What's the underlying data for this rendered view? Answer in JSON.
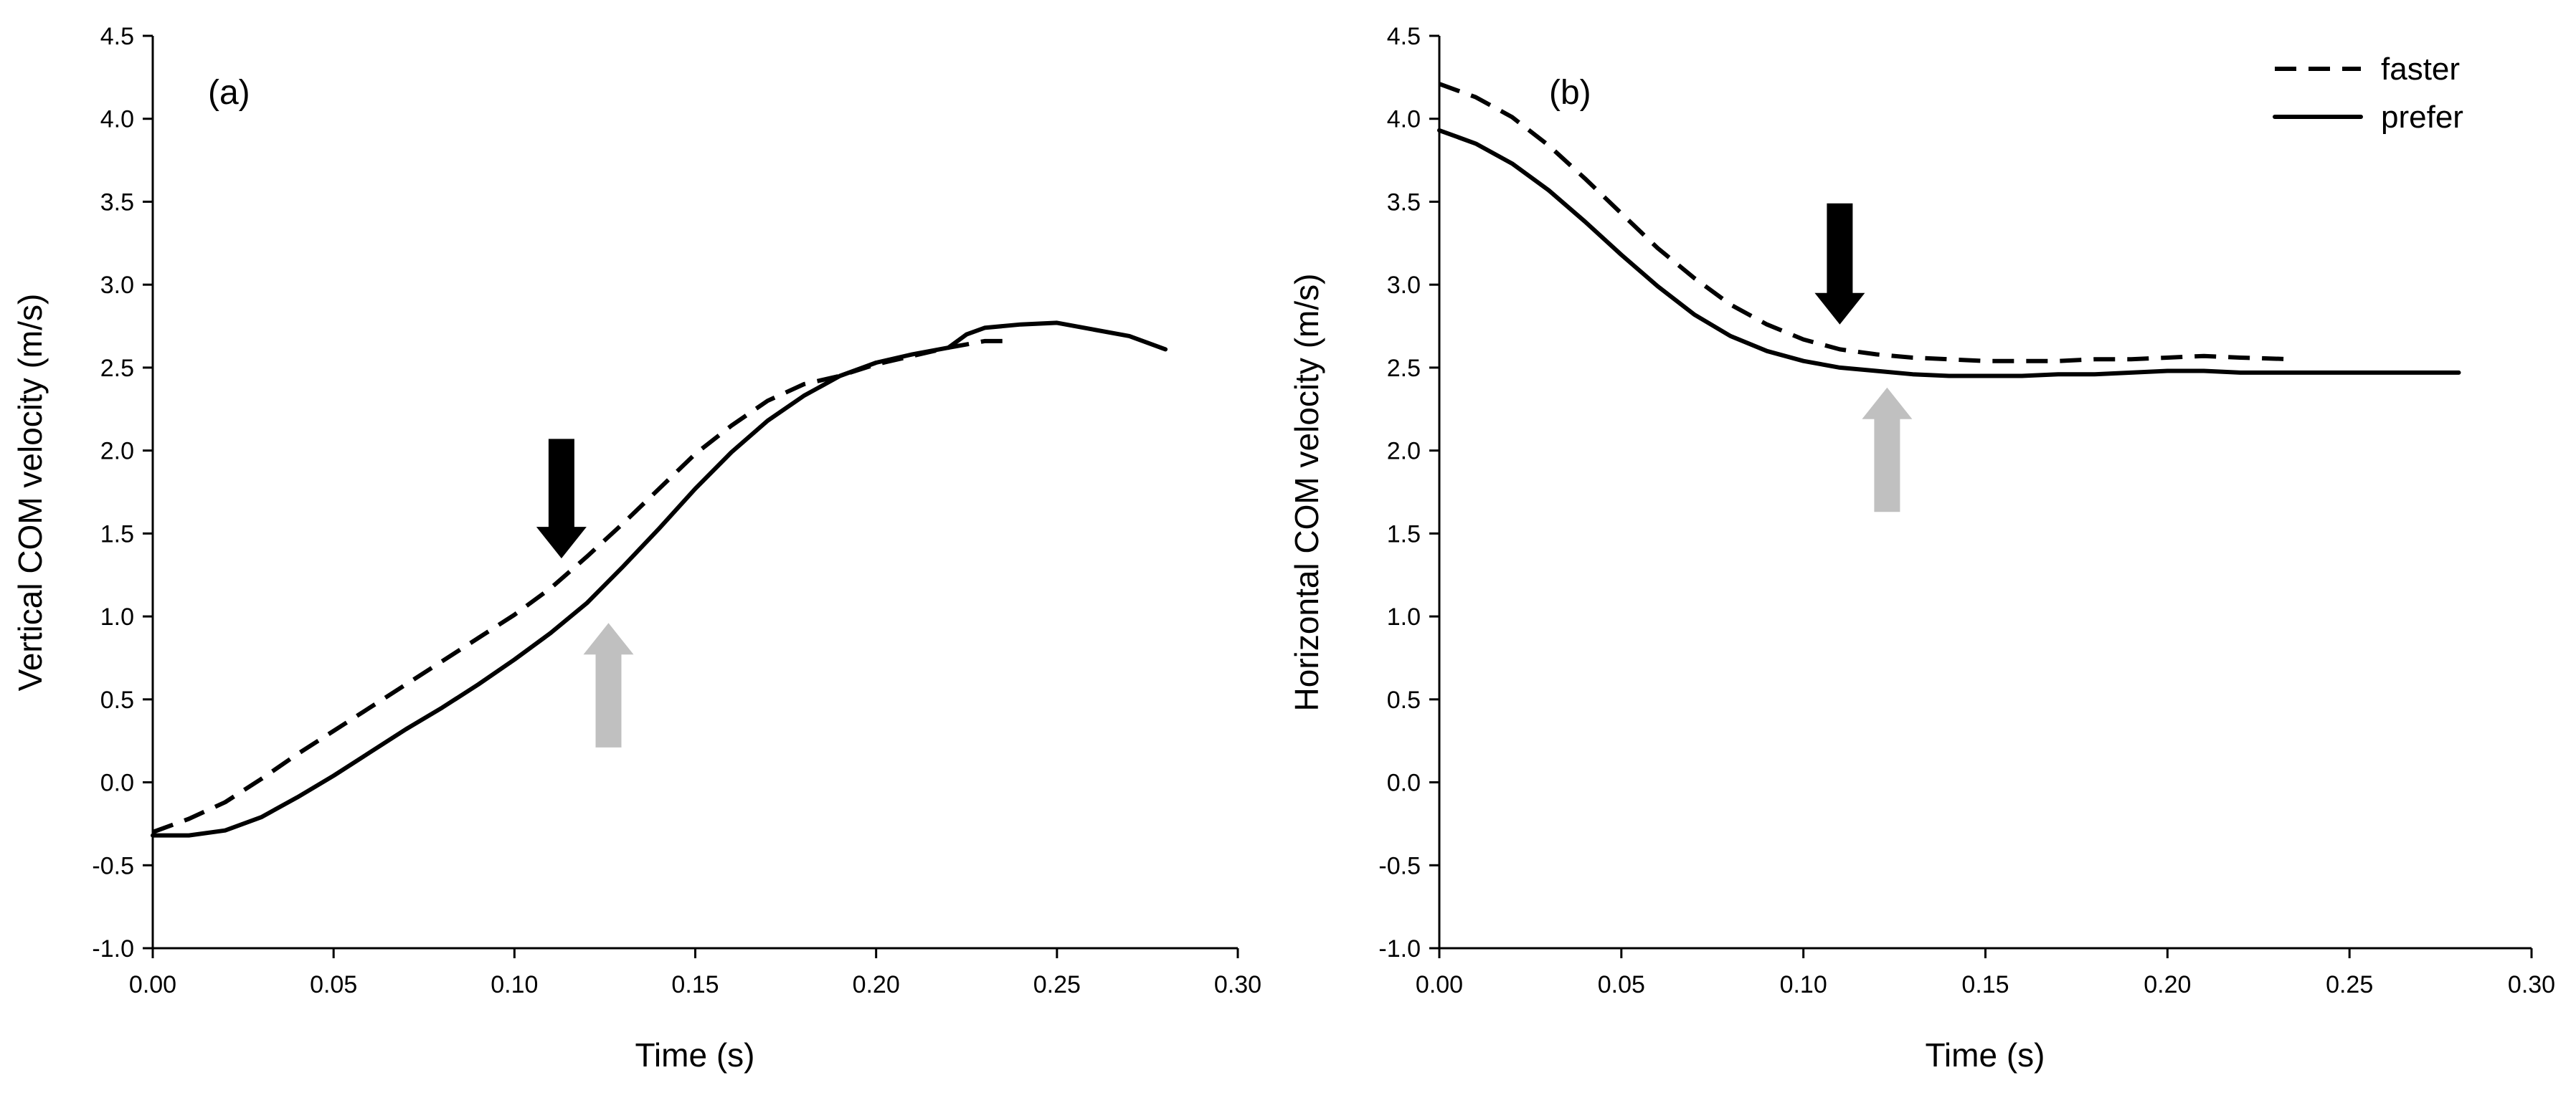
{
  "chart_data": [
    {
      "type": "line",
      "panel_label": "(a)",
      "xlabel": "Time (s)",
      "ylabel": "Vertical COM velocity (m/s)",
      "xlim": [
        0,
        0.3
      ],
      "ylim": [
        -1.0,
        4.5
      ],
      "xticks": [
        0,
        0.05,
        0.1,
        0.15,
        0.2,
        0.25,
        0.3
      ],
      "xtick_labels": [
        "0.00",
        "0.05",
        "0.10",
        "0.15",
        "0.20",
        "0.25",
        "0.30"
      ],
      "yticks": [
        -1.0,
        -0.5,
        0.0,
        0.5,
        1.0,
        1.5,
        2.0,
        2.5,
        3.0,
        3.5,
        4.0,
        4.5
      ],
      "ytick_labels": [
        "-1.0",
        "-0.5",
        "0.0",
        "0.5",
        "1.0",
        "1.5",
        "2.0",
        "2.5",
        "3.0",
        "3.5",
        "4.0",
        "4.5"
      ],
      "series": [
        {
          "name": "faster",
          "style": "dashed",
          "x": [
            0,
            0.01,
            0.02,
            0.03,
            0.04,
            0.05,
            0.06,
            0.07,
            0.08,
            0.09,
            0.1,
            0.11,
            0.12,
            0.13,
            0.14,
            0.15,
            0.16,
            0.17,
            0.18,
            0.19,
            0.2,
            0.21,
            0.22,
            0.23,
            0.235
          ],
          "values": [
            -0.3,
            -0.22,
            -0.12,
            0.02,
            0.17,
            0.31,
            0.45,
            0.59,
            0.73,
            0.87,
            1.01,
            1.17,
            1.36,
            1.56,
            1.77,
            1.98,
            2.15,
            2.3,
            2.4,
            2.45,
            2.52,
            2.57,
            2.62,
            2.66,
            2.66
          ]
        },
        {
          "name": "prefer",
          "style": "solid",
          "x": [
            0,
            0.01,
            0.02,
            0.03,
            0.04,
            0.05,
            0.06,
            0.07,
            0.08,
            0.09,
            0.1,
            0.11,
            0.12,
            0.13,
            0.14,
            0.15,
            0.16,
            0.17,
            0.18,
            0.19,
            0.2,
            0.21,
            0.22,
            0.225,
            0.23,
            0.24,
            0.25,
            0.26,
            0.27,
            0.28
          ],
          "values": [
            -0.32,
            -0.32,
            -0.29,
            -0.21,
            -0.09,
            0.04,
            0.18,
            0.32,
            0.45,
            0.59,
            0.74,
            0.9,
            1.08,
            1.3,
            1.53,
            1.77,
            1.99,
            2.18,
            2.33,
            2.45,
            2.53,
            2.58,
            2.62,
            2.7,
            2.74,
            2.76,
            2.77,
            2.73,
            2.69,
            2.61
          ]
        }
      ],
      "annotations": [
        {
          "type": "arrow",
          "direction": "down",
          "color": "#000000",
          "x": 0.113,
          "y_from": 2.07,
          "y_to": 1.35
        },
        {
          "type": "arrow",
          "direction": "up",
          "color": "#c0c0c0",
          "x": 0.126,
          "y_from": 0.21,
          "y_to": 0.96
        }
      ]
    },
    {
      "type": "line",
      "panel_label": "(b)",
      "xlabel": "Time (s)",
      "ylabel": "Horizontal COM velocity (m/s)",
      "xlim": [
        0,
        0.3
      ],
      "ylim": [
        -1.0,
        4.5
      ],
      "xticks": [
        0,
        0.05,
        0.1,
        0.15,
        0.2,
        0.25,
        0.3
      ],
      "xtick_labels": [
        "0.00",
        "0.05",
        "0.10",
        "0.15",
        "0.20",
        "0.25",
        "0.30"
      ],
      "yticks": [
        -1.0,
        -0.5,
        0.0,
        0.5,
        1.0,
        1.5,
        2.0,
        2.5,
        3.0,
        3.5,
        4.0,
        4.5
      ],
      "ytick_labels": [
        "-1.0",
        "-0.5",
        "0.0",
        "0.5",
        "1.0",
        "1.5",
        "2.0",
        "2.5",
        "3.0",
        "3.5",
        "4.0",
        "4.5"
      ],
      "legend": {
        "position": "top-right",
        "entries": [
          {
            "name": "faster",
            "style": "dashed"
          },
          {
            "name": "prefer",
            "style": "solid"
          }
        ]
      },
      "series": [
        {
          "name": "faster",
          "style": "dashed",
          "x": [
            0,
            0.01,
            0.02,
            0.03,
            0.04,
            0.05,
            0.06,
            0.07,
            0.08,
            0.09,
            0.1,
            0.11,
            0.12,
            0.13,
            0.14,
            0.15,
            0.16,
            0.17,
            0.18,
            0.19,
            0.2,
            0.21,
            0.22,
            0.235
          ],
          "values": [
            4.21,
            4.13,
            4.01,
            3.84,
            3.64,
            3.43,
            3.22,
            3.04,
            2.88,
            2.76,
            2.67,
            2.61,
            2.58,
            2.56,
            2.55,
            2.54,
            2.54,
            2.54,
            2.55,
            2.55,
            2.56,
            2.57,
            2.56,
            2.55
          ]
        },
        {
          "name": "prefer",
          "style": "solid",
          "x": [
            0,
            0.01,
            0.02,
            0.03,
            0.04,
            0.05,
            0.06,
            0.07,
            0.08,
            0.09,
            0.1,
            0.11,
            0.12,
            0.13,
            0.14,
            0.15,
            0.16,
            0.17,
            0.18,
            0.19,
            0.2,
            0.21,
            0.22,
            0.23,
            0.24,
            0.25,
            0.26,
            0.27,
            0.28
          ],
          "values": [
            3.93,
            3.85,
            3.73,
            3.57,
            3.38,
            3.18,
            2.99,
            2.82,
            2.69,
            2.6,
            2.54,
            2.5,
            2.48,
            2.46,
            2.45,
            2.45,
            2.45,
            2.46,
            2.46,
            2.47,
            2.48,
            2.48,
            2.47,
            2.47,
            2.47,
            2.47,
            2.47,
            2.47,
            2.47
          ]
        }
      ],
      "annotations": [
        {
          "type": "arrow",
          "direction": "down",
          "color": "#000000",
          "x": 0.11,
          "y_from": 3.49,
          "y_to": 2.76
        },
        {
          "type": "arrow",
          "direction": "up",
          "color": "#c0c0c0",
          "x": 0.123,
          "y_from": 1.63,
          "y_to": 2.38
        }
      ]
    }
  ]
}
